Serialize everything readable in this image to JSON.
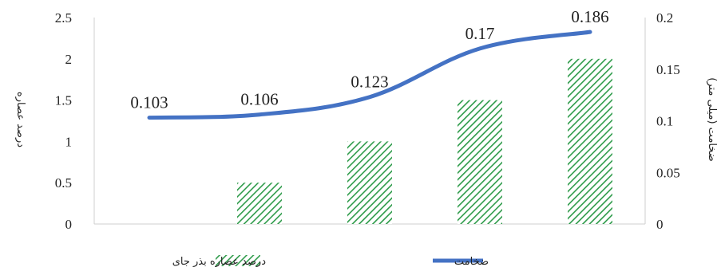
{
  "chart_data": {
    "type": "bar+line",
    "categories": [
      "",
      "",
      "",
      "",
      ""
    ],
    "series": [
      {
        "name": "درصد عصاره بذر جای",
        "type": "bar",
        "axis": "left",
        "values": [
          0,
          0.5,
          1,
          1.5,
          2
        ],
        "color": "#2e9b4a",
        "pattern": "diagonal-hatch"
      },
      {
        "name": "ضخامت",
        "type": "line",
        "axis": "right",
        "values": [
          0.103,
          0.106,
          0.123,
          0.17,
          0.186
        ],
        "data_labels": [
          "0.103",
          "0.106",
          "0.123",
          "0.17",
          "0.186"
        ],
        "color": "#4472c4"
      }
    ],
    "y_left": {
      "label": "درصد عصاره",
      "range": [
        0,
        2.5
      ],
      "ticks": [
        "0",
        "0.5",
        "1",
        "1.5",
        "2",
        "2.5"
      ]
    },
    "y_right": {
      "label": "ضخامت (میلی متر)",
      "range": [
        0,
        0.2
      ],
      "ticks": [
        "0",
        "0.05",
        "0.1",
        "0.15",
        "0.2"
      ]
    },
    "grid": false,
    "legend_position": "bottom"
  }
}
